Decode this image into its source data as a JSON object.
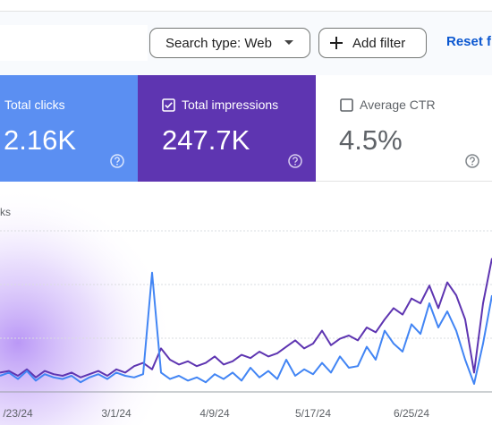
{
  "toolbar": {
    "search_type": "Search type: Web",
    "add_filter": "Add filter",
    "reset": "Reset fi"
  },
  "cards": [
    {
      "label": "Total clicks",
      "value": "2.16K"
    },
    {
      "label": "Total impressions",
      "value": "247.7K"
    },
    {
      "label": "Average CTR",
      "value": "4.5%"
    }
  ],
  "chart_data": {
    "type": "line",
    "y_label": "ks",
    "categories": [
      null,
      null,
      "/23/24",
      null,
      null,
      null,
      null,
      null,
      null,
      null,
      null,
      null,
      null,
      "3/1/24",
      null,
      null,
      null,
      null,
      null,
      null,
      null,
      null,
      null,
      null,
      "4/9/24",
      null,
      null,
      null,
      null,
      null,
      null,
      null,
      null,
      null,
      null,
      "5/17/24",
      null,
      null,
      null,
      null,
      null,
      null,
      null,
      null,
      null,
      null,
      "6/25/24",
      null,
      null,
      null,
      null,
      null,
      null,
      null,
      null,
      null
    ],
    "ylim": [
      0,
      100
    ],
    "series": [
      {
        "name": "Total impressions",
        "color": "#5e35b1",
        "values": [
          12,
          13,
          10,
          14,
          9,
          13,
          11,
          10,
          12,
          9,
          11,
          13,
          10,
          14,
          12,
          16,
          18,
          14,
          27,
          20,
          17,
          19,
          16,
          18,
          22,
          17,
          19,
          23,
          21,
          25,
          22,
          24,
          28,
          32,
          27,
          30,
          38,
          29,
          33,
          35,
          32,
          40,
          37,
          45,
          52,
          48,
          58,
          55,
          66,
          52,
          68,
          60,
          45,
          12,
          55,
          83
        ]
      },
      {
        "name": "Total clicks",
        "color": "#4285f4",
        "values": [
          10,
          12,
          8,
          13,
          7,
          11,
          9,
          8,
          10,
          6,
          9,
          11,
          8,
          12,
          10,
          9,
          11,
          74,
          12,
          8,
          10,
          7,
          9,
          6,
          11,
          8,
          12,
          7,
          15,
          9,
          13,
          8,
          20,
          10,
          14,
          11,
          18,
          12,
          22,
          15,
          16,
          28,
          20,
          38,
          30,
          25,
          42,
          36,
          55,
          40,
          50,
          38,
          20,
          5,
          30,
          60
        ]
      }
    ]
  }
}
